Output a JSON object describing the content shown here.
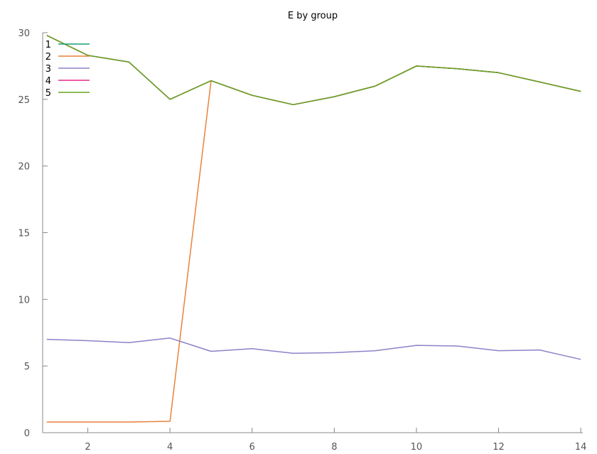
{
  "chart_data": {
    "type": "line",
    "title": "E by group",
    "xlabel": "",
    "ylabel": "",
    "xlim": [
      0.9,
      14.05
    ],
    "ylim": [
      0,
      30
    ],
    "x_ticks": [
      2,
      4,
      6,
      8,
      10,
      12,
      14
    ],
    "y_ticks": [
      0,
      5,
      10,
      15,
      20,
      25,
      30
    ],
    "grid": false,
    "legend_position": "top-left",
    "x": [
      1,
      2,
      3,
      4,
      5,
      6,
      7,
      8,
      9,
      10,
      11,
      12,
      13,
      14
    ],
    "series": [
      {
        "name": "1",
        "color": "#1a9e77",
        "values": [
          29.8,
          28.3,
          27.8,
          25.0,
          26.4,
          25.3,
          24.6,
          25.2,
          26.0,
          27.5,
          27.3,
          27.0,
          26.3,
          25.6
        ]
      },
      {
        "name": "2",
        "color": "#e8823a",
        "values": [
          0.8,
          0.8,
          0.8,
          0.85,
          26.4,
          25.3,
          24.6,
          25.2,
          26.0,
          27.5,
          27.3,
          27.0,
          26.3,
          25.6
        ]
      },
      {
        "name": "3",
        "color": "#8b82c8",
        "values": [
          7.0,
          6.9,
          6.75,
          7.1,
          6.1,
          6.3,
          5.95,
          6.0,
          6.15,
          6.55,
          6.5,
          6.15,
          6.2,
          5.5
        ]
      },
      {
        "name": "4",
        "color": "#e7298a",
        "values": [
          29.8,
          28.3,
          27.8,
          25.0,
          26.4,
          25.3,
          24.6,
          25.2,
          26.0,
          27.5,
          27.3,
          27.0,
          26.3,
          25.6
        ]
      },
      {
        "name": "5",
        "color": "#66a61e",
        "values": [
          29.8,
          28.3,
          27.8,
          25.0,
          26.4,
          25.3,
          24.6,
          25.2,
          26.0,
          27.5,
          27.3,
          27.0,
          26.3,
          25.6
        ]
      }
    ]
  }
}
